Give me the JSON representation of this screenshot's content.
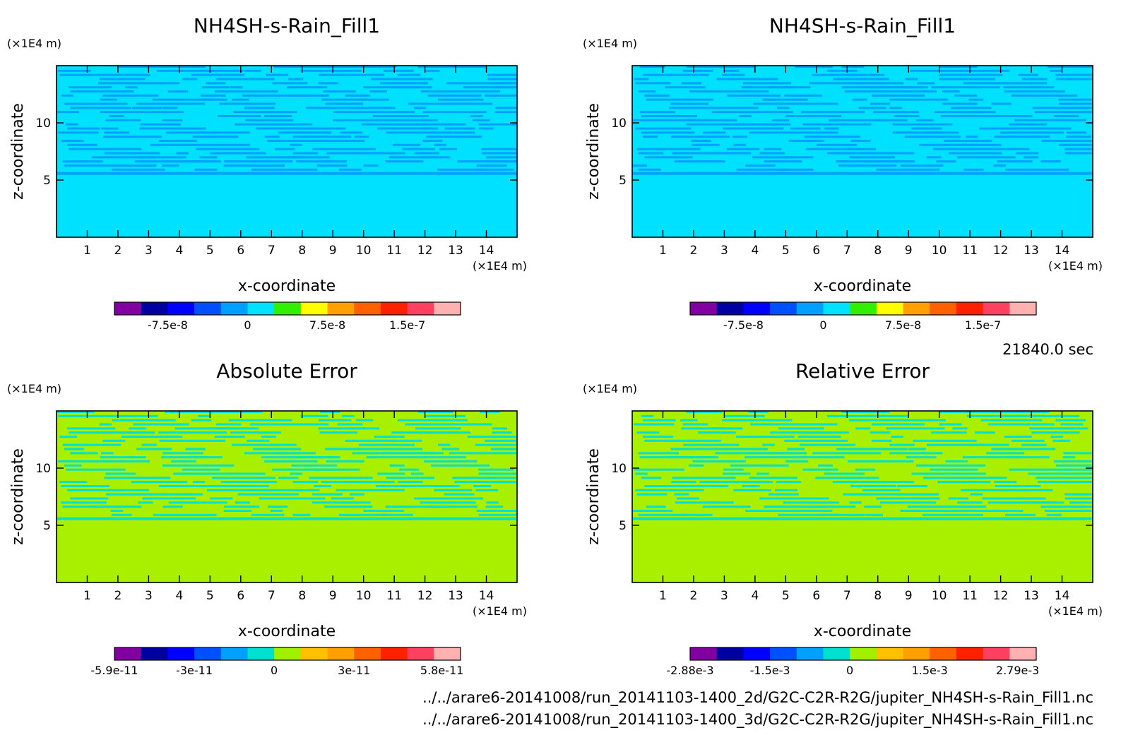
{
  "time_label": "21840.0 sec",
  "file_paths": [
    "../../arare6-20141008/run_20141103-1400_2d/G2C-C2R-R2G/jupiter_NH4SH-s-Rain_Fill1.nc",
    "../../arare6-20141008/run_20141103-1400_3d/G2C-C2R-R2G/jupiter_NH4SH-s-Rain_Fill1.nc"
  ],
  "chart_data": [
    {
      "type": "heatmap",
      "title": "NH4SH-s-Rain_Fill1",
      "xlabel": "x-coordinate",
      "ylabel": "z-coordinate",
      "x_unit": "(×1E4 m)",
      "z_unit": "(×1E4 m)",
      "x_ticks": [
        "1",
        "2",
        "3",
        "4",
        "5",
        "6",
        "7",
        "8",
        "9",
        "10",
        "11",
        "12",
        "13",
        "14"
      ],
      "z_ticks": [
        "5",
        "10"
      ],
      "xlim": [
        0,
        15
      ],
      "zlim": [
        0,
        15
      ],
      "colorbar": {
        "colors": [
          "#8000a0",
          "#0000a0",
          "#0000ff",
          "#0050ff",
          "#00a0ff",
          "#00e0ff",
          "#30f000",
          "#ffff00",
          "#ffa000",
          "#ff6000",
          "#ff2000",
          "#ff4060",
          "#ffb0b0"
        ],
        "labels": [
          "-7.5e-8",
          "0",
          "7.5e-8",
          "1.5e-7"
        ]
      },
      "background_color": "#00e0ff",
      "pattern_color": "#00a0ff",
      "dominant_level": "0"
    },
    {
      "type": "heatmap",
      "title": "NH4SH-s-Rain_Fill1",
      "xlabel": "x-coordinate",
      "ylabel": "z-coordinate",
      "x_unit": "(×1E4 m)",
      "z_unit": "(×1E4 m)",
      "x_ticks": [
        "1",
        "2",
        "3",
        "4",
        "5",
        "6",
        "7",
        "8",
        "9",
        "10",
        "11",
        "12",
        "13",
        "14"
      ],
      "z_ticks": [
        "5",
        "10"
      ],
      "xlim": [
        0,
        15
      ],
      "zlim": [
        0,
        15
      ],
      "colorbar": {
        "colors": [
          "#8000a0",
          "#0000a0",
          "#0000ff",
          "#0050ff",
          "#00a0ff",
          "#00e0ff",
          "#30f000",
          "#ffff00",
          "#ffa000",
          "#ff6000",
          "#ff2000",
          "#ff4060",
          "#ffb0b0"
        ],
        "labels": [
          "-7.5e-8",
          "0",
          "7.5e-8",
          "1.5e-7"
        ]
      },
      "background_color": "#00e0ff",
      "pattern_color": "#00a0ff",
      "dominant_level": "0"
    },
    {
      "type": "heatmap",
      "title": "Absolute Error",
      "xlabel": "x-coordinate",
      "ylabel": "z-coordinate",
      "x_unit": "(×1E4 m)",
      "z_unit": "(×1E4 m)",
      "x_ticks": [
        "1",
        "2",
        "3",
        "4",
        "5",
        "6",
        "7",
        "8",
        "9",
        "10",
        "11",
        "12",
        "13",
        "14"
      ],
      "z_ticks": [
        "5",
        "10"
      ],
      "xlim": [
        0,
        15
      ],
      "zlim": [
        0,
        15
      ],
      "colorbar": {
        "colors": [
          "#8000a0",
          "#0000a0",
          "#0000ff",
          "#0050ff",
          "#00a0ff",
          "#00e0d0",
          "#a0f000",
          "#ffc000",
          "#ffa000",
          "#ff6000",
          "#ff2000",
          "#ff4060",
          "#ffb0b0"
        ],
        "labels": [
          "-5.9e-11",
          "-3e-11",
          "0",
          "3e-11",
          "5.8e-11"
        ]
      },
      "background_color": "#a8f000",
      "pattern_color": "#00e0d0",
      "dominant_level": "0"
    },
    {
      "type": "heatmap",
      "title": "Relative Error",
      "xlabel": "x-coordinate",
      "ylabel": "z-coordinate",
      "x_unit": "(×1E4 m)",
      "z_unit": "(×1E4 m)",
      "x_ticks": [
        "1",
        "2",
        "3",
        "4",
        "5",
        "6",
        "7",
        "8",
        "9",
        "10",
        "11",
        "12",
        "13",
        "14"
      ],
      "z_ticks": [
        "5",
        "10"
      ],
      "xlim": [
        0,
        15
      ],
      "zlim": [
        0,
        15
      ],
      "colorbar": {
        "colors": [
          "#8000a0",
          "#0000a0",
          "#0000ff",
          "#0050ff",
          "#00a0ff",
          "#00e0d0",
          "#a0f000",
          "#ffc000",
          "#ffa000",
          "#ff6000",
          "#ff2000",
          "#ff4060",
          "#ffb0b0"
        ],
        "labels": [
          "-2.88e-3",
          "-1.5e-3",
          "0",
          "1.5e-3",
          "2.79e-3"
        ]
      },
      "background_color": "#a8f000",
      "pattern_color": "#00e0d0",
      "dominant_level": "0"
    }
  ]
}
